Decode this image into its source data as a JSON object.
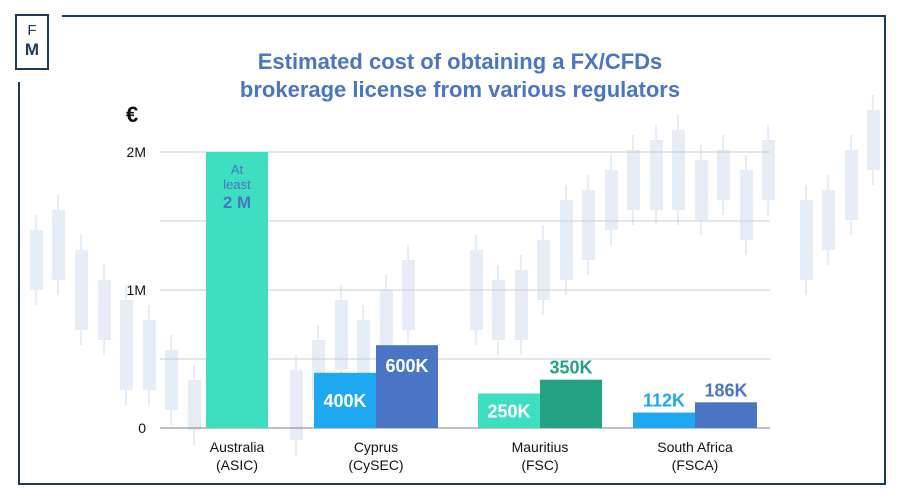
{
  "logo": {
    "line1": "F",
    "line2": "M"
  },
  "chart_data": {
    "type": "bar",
    "title": "Estimated cost of obtaining a FX/CFDs brokerage license from various regulators",
    "title_lines": [
      "Estimated cost of obtaining a FX/CFDs",
      "brokerage license from various regulators"
    ],
    "unit_label": "€",
    "y_ticks": [
      {
        "value": 0,
        "label": "0"
      },
      {
        "value": 1000000,
        "label": "1M"
      },
      {
        "value": 2000000,
        "label": "2M"
      }
    ],
    "gridlines": [
      500000,
      1000000,
      1500000,
      2000000
    ],
    "ylim": [
      0,
      2000000
    ],
    "categories": [
      {
        "label_lines": [
          "Australia",
          "(ASIC)"
        ],
        "bars": [
          {
            "value": 2000000,
            "label_lines": [
              "At",
              "least",
              "2 M"
            ],
            "color": "#3ddfc0",
            "label_color": "#4a74c4"
          }
        ]
      },
      {
        "label_lines": [
          "Cyprus",
          "(CySEC)"
        ],
        "bars": [
          {
            "value": 400000,
            "label_lines": [
              "400K"
            ],
            "color": "#1ea8f2",
            "label_color": "#ffffff"
          },
          {
            "value": 600000,
            "label_lines": [
              "600K"
            ],
            "color": "#4a74c4",
            "label_color": "#ffffff"
          }
        ]
      },
      {
        "label_lines": [
          "Mauritius",
          "(FSC)"
        ],
        "bars": [
          {
            "value": 250000,
            "label_lines": [
              "250K"
            ],
            "color": "#3ddfc0",
            "label_color": "#ffffff"
          },
          {
            "value": 350000,
            "label_lines": [
              "350K"
            ],
            "color": "#22a283",
            "label_color": "#22a283"
          }
        ]
      },
      {
        "label_lines": [
          "South Africa",
          "(FSCA)"
        ],
        "bars": [
          {
            "value": 112000,
            "label_lines": [
              "112K"
            ],
            "color": "#1ea8f2",
            "label_color": "#1ea8f2"
          },
          {
            "value": 186000,
            "label_lines": [
              "186K"
            ],
            "color": "#4a74c4",
            "label_color": "#4a74c4"
          }
        ]
      }
    ],
    "grid": true,
    "legend": "none"
  }
}
